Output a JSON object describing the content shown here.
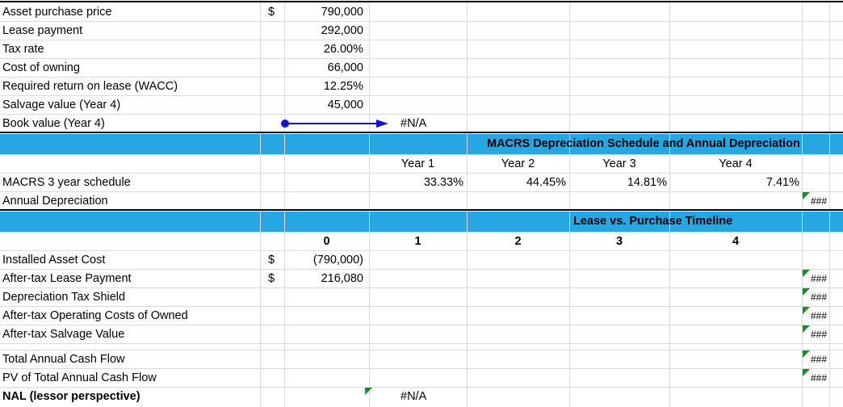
{
  "inputs": [
    {
      "label": "Asset purchase price",
      "currency": "$",
      "value": "790,000"
    },
    {
      "label": "Lease payment",
      "currency": "",
      "value": "292,000"
    },
    {
      "label": "Tax rate",
      "currency": "",
      "value": "26.00%"
    },
    {
      "label": "Cost of owning",
      "currency": "",
      "value": "66,000"
    },
    {
      "label": "Required return on lease (WACC)",
      "currency": "",
      "value": "12.25%"
    },
    {
      "label": "Salvage value (Year 4)",
      "currency": "",
      "value": "45,000"
    },
    {
      "label": "Book value (Year 4)",
      "currency": "",
      "value": ""
    }
  ],
  "book_value_result": "#N/A",
  "macrs": {
    "title": "MACRS Depreciation Schedule and Annual Depreciation",
    "years": [
      "Year 1",
      "Year 2",
      "Year 3",
      "Year 4"
    ],
    "schedule_label": "MACRS 3 year schedule",
    "rates": [
      "33.33%",
      "44.45%",
      "14.81%",
      "7.41%"
    ],
    "depreciation_label": "Annual Depreciation",
    "depreciation_overflow": "###"
  },
  "timeline": {
    "title": "Lease vs. Purchase Timeline",
    "periods": [
      "0",
      "1",
      "2",
      "3",
      "4"
    ],
    "rows": [
      {
        "label": "Installed Asset Cost",
        "currency": "$",
        "value": "(790,000)",
        "overflow": ""
      },
      {
        "label": "After-tax Lease Payment",
        "currency": "$",
        "value": "216,080",
        "overflow": "###"
      },
      {
        "label": "Depreciation Tax Shield",
        "currency": "",
        "value": "",
        "overflow": "###"
      },
      {
        "label": "After-tax Operating Costs of Owned",
        "currency": "",
        "value": "",
        "overflow": "###"
      },
      {
        "label": "After-tax Salvage Value",
        "currency": "",
        "value": "",
        "overflow": "###"
      }
    ],
    "total_label": "Total Annual Cash Flow",
    "total_overflow": "###",
    "pv_label": "PV of Total Annual Cash Flow",
    "pv_overflow": "###",
    "nal_label": "NAL (lessor perspective)",
    "nal_value": "#N/A"
  }
}
